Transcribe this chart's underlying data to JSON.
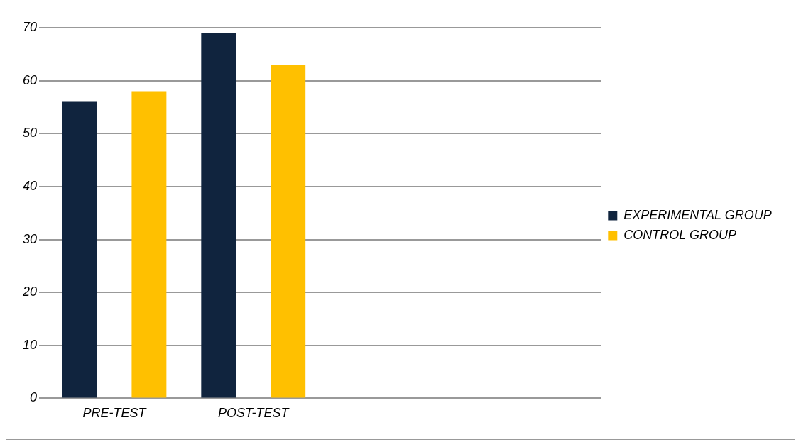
{
  "chart_data": {
    "type": "bar",
    "categories": [
      "PRE-TEST",
      "POST-TEST",
      null,
      null
    ],
    "series": [
      {
        "name": "EXPERIMENTAL GROUP",
        "color": "#10243e",
        "values": [
          56,
          69,
          null,
          null
        ]
      },
      {
        "name": "CONTROL GROUP",
        "color": "#ffc000",
        "values": [
          58,
          63,
          null,
          null
        ]
      }
    ],
    "ylim": [
      0,
      70
    ],
    "yticks": [
      0,
      10,
      20,
      30,
      40,
      50,
      60,
      70
    ],
    "grid": "y",
    "legend": "right"
  }
}
